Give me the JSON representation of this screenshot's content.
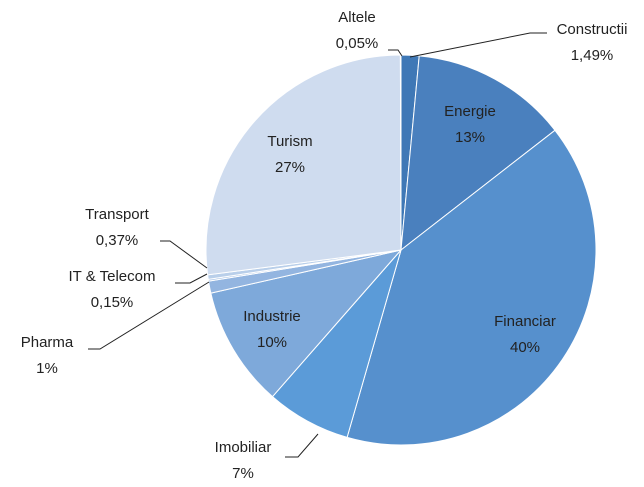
{
  "chart_data": {
    "type": "pie",
    "categories": [
      "Constructii",
      "Energie",
      "Financiar",
      "Imobiliar",
      "Industrie",
      "Pharma",
      "IT & Telecom",
      "Transport",
      "Turism",
      "Altele"
    ],
    "values": [
      1.49,
      13,
      40,
      7,
      10,
      1,
      0.15,
      0.37,
      27,
      0.05
    ],
    "value_labels": [
      "1,49%",
      "13%",
      "40%",
      "7%",
      "10%",
      "1%",
      "0,15%",
      "0,37%",
      "27%",
      "0,05%"
    ],
    "colors": [
      "#3f78b6",
      "#4a80be",
      "#5690cd",
      "#5b9bd8",
      "#7ea9da",
      "#93b5e0",
      "#a9c3e6",
      "#b9cfea",
      "#cfdcef",
      "#3a6ca8"
    ]
  }
}
